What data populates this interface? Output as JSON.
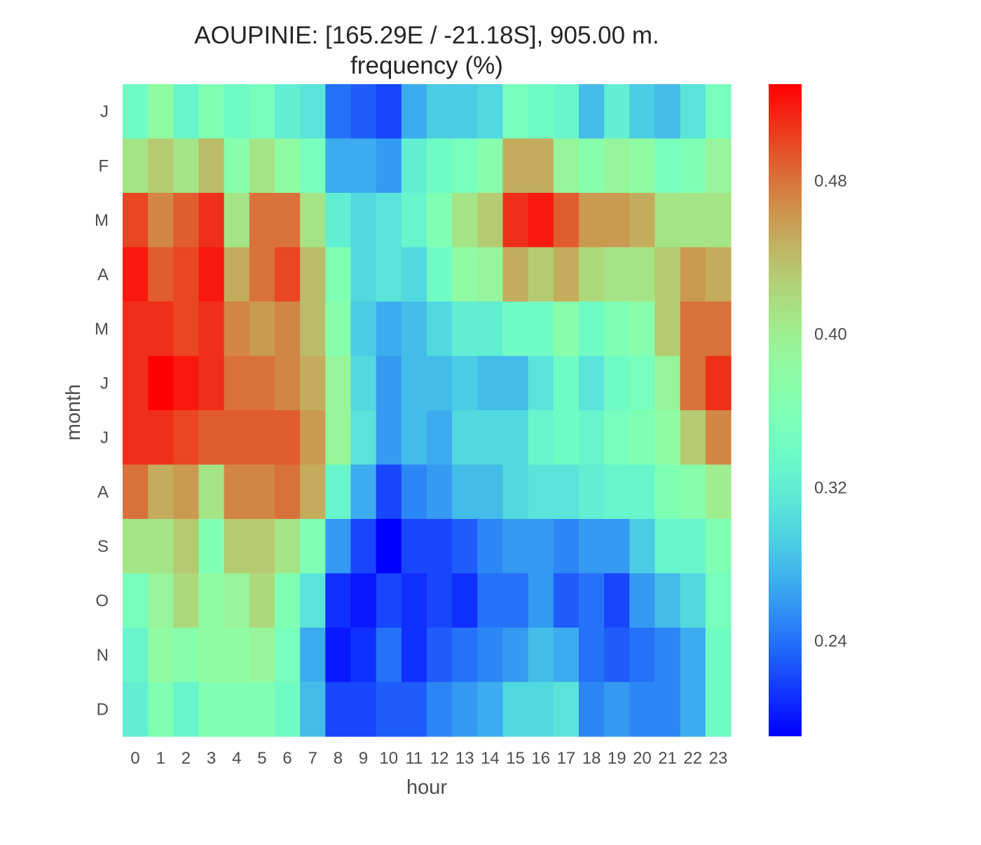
{
  "chart_data": {
    "type": "heatmap",
    "title": "AOUPINIE: [165.29E / -21.18S], 905.00 m.",
    "subtitle": "frequency (%)",
    "xlabel": "hour",
    "ylabel": "month",
    "x": [
      "0",
      "1",
      "2",
      "3",
      "4",
      "5",
      "6",
      "7",
      "8",
      "9",
      "10",
      "11",
      "12",
      "13",
      "14",
      "15",
      "16",
      "17",
      "18",
      "19",
      "20",
      "21",
      "22",
      "23"
    ],
    "y": [
      "J",
      "F",
      "M",
      "A",
      "M",
      "J",
      "J",
      "A",
      "S",
      "O",
      "N",
      "D"
    ],
    "colormap": "rainbow",
    "vmin": 0.19,
    "vmax": 0.53,
    "colorbar_ticks": [
      0.24,
      0.32,
      0.4,
      0.48
    ],
    "colorbar_tick_labels": [
      "0.24",
      "0.32",
      "0.40",
      "0.48"
    ],
    "values": [
      [
        0.34,
        0.38,
        0.33,
        0.36,
        0.34,
        0.35,
        0.32,
        0.31,
        0.24,
        0.23,
        0.22,
        0.27,
        0.29,
        0.29,
        0.3,
        0.35,
        0.34,
        0.33,
        0.28,
        0.32,
        0.29,
        0.28,
        0.31,
        0.35
      ],
      [
        0.41,
        0.43,
        0.41,
        0.44,
        0.37,
        0.41,
        0.38,
        0.35,
        0.27,
        0.27,
        0.26,
        0.32,
        0.34,
        0.35,
        0.37,
        0.45,
        0.45,
        0.39,
        0.37,
        0.39,
        0.38,
        0.35,
        0.36,
        0.39
      ],
      [
        0.5,
        0.47,
        0.49,
        0.51,
        0.41,
        0.48,
        0.48,
        0.41,
        0.32,
        0.3,
        0.31,
        0.33,
        0.36,
        0.41,
        0.43,
        0.51,
        0.52,
        0.49,
        0.46,
        0.46,
        0.45,
        0.41,
        0.41,
        0.41
      ],
      [
        0.52,
        0.49,
        0.5,
        0.52,
        0.45,
        0.48,
        0.5,
        0.44,
        0.36,
        0.3,
        0.31,
        0.3,
        0.34,
        0.38,
        0.39,
        0.45,
        0.43,
        0.45,
        0.42,
        0.41,
        0.41,
        0.43,
        0.46,
        0.45
      ],
      [
        0.51,
        0.51,
        0.5,
        0.51,
        0.47,
        0.46,
        0.47,
        0.44,
        0.37,
        0.29,
        0.27,
        0.28,
        0.3,
        0.32,
        0.32,
        0.34,
        0.34,
        0.37,
        0.34,
        0.36,
        0.37,
        0.43,
        0.48,
        0.48
      ],
      [
        0.51,
        0.53,
        0.52,
        0.51,
        0.48,
        0.48,
        0.47,
        0.45,
        0.39,
        0.3,
        0.26,
        0.28,
        0.28,
        0.29,
        0.28,
        0.28,
        0.31,
        0.34,
        0.31,
        0.34,
        0.35,
        0.39,
        0.48,
        0.51
      ],
      [
        0.51,
        0.51,
        0.5,
        0.49,
        0.49,
        0.49,
        0.49,
        0.46,
        0.39,
        0.31,
        0.26,
        0.28,
        0.27,
        0.3,
        0.3,
        0.3,
        0.33,
        0.34,
        0.33,
        0.35,
        0.36,
        0.38,
        0.43,
        0.47
      ],
      [
        0.48,
        0.45,
        0.46,
        0.41,
        0.47,
        0.47,
        0.48,
        0.45,
        0.33,
        0.27,
        0.22,
        0.25,
        0.26,
        0.28,
        0.28,
        0.3,
        0.31,
        0.31,
        0.32,
        0.33,
        0.33,
        0.36,
        0.37,
        0.4
      ],
      [
        0.41,
        0.41,
        0.43,
        0.36,
        0.43,
        0.43,
        0.41,
        0.36,
        0.26,
        0.22,
        0.19,
        0.22,
        0.22,
        0.23,
        0.25,
        0.26,
        0.26,
        0.25,
        0.26,
        0.26,
        0.29,
        0.33,
        0.33,
        0.36
      ],
      [
        0.35,
        0.39,
        0.42,
        0.38,
        0.39,
        0.42,
        0.36,
        0.31,
        0.21,
        0.2,
        0.22,
        0.21,
        0.22,
        0.21,
        0.24,
        0.24,
        0.26,
        0.23,
        0.24,
        0.22,
        0.26,
        0.28,
        0.3,
        0.35
      ],
      [
        0.33,
        0.38,
        0.37,
        0.38,
        0.38,
        0.39,
        0.35,
        0.27,
        0.2,
        0.21,
        0.24,
        0.21,
        0.23,
        0.24,
        0.25,
        0.26,
        0.28,
        0.27,
        0.24,
        0.23,
        0.24,
        0.25,
        0.27,
        0.34
      ],
      [
        0.32,
        0.36,
        0.33,
        0.36,
        0.36,
        0.36,
        0.34,
        0.28,
        0.22,
        0.22,
        0.23,
        0.23,
        0.25,
        0.26,
        0.27,
        0.3,
        0.3,
        0.31,
        0.25,
        0.26,
        0.25,
        0.25,
        0.27,
        0.34
      ]
    ]
  }
}
